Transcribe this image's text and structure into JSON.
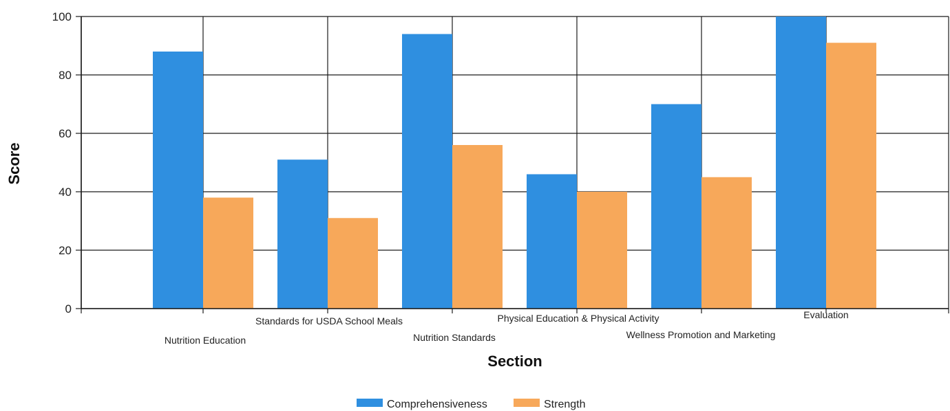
{
  "chart_data": {
    "type": "bar",
    "title": "",
    "xlabel": "Section",
    "ylabel": "Score",
    "ylim": [
      0,
      100
    ],
    "yticks": [
      0,
      20,
      40,
      60,
      80,
      100
    ],
    "grid": true,
    "legend_position": "bottom-center",
    "categories": [
      "Nutrition Education",
      "Standards for USDA School Meals",
      "Nutrition Standards",
      "Physical Education & Physical Activity",
      "Wellness Promotion and Marketing",
      "Evaluation"
    ],
    "series": [
      {
        "name": "Comprehensiveness",
        "color": "#2f8fe0",
        "values": [
          88,
          51,
          94,
          46,
          70,
          100
        ]
      },
      {
        "name": "Strength",
        "color": "#f7a85a",
        "values": [
          38,
          31,
          56,
          40,
          45,
          91
        ]
      }
    ]
  }
}
